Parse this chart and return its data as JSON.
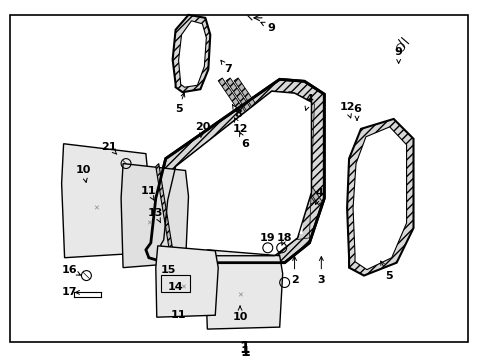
{
  "background_color": "#ffffff",
  "figure_width": 4.9,
  "figure_height": 3.6,
  "dpi": 100,
  "diagram_number": "1"
}
